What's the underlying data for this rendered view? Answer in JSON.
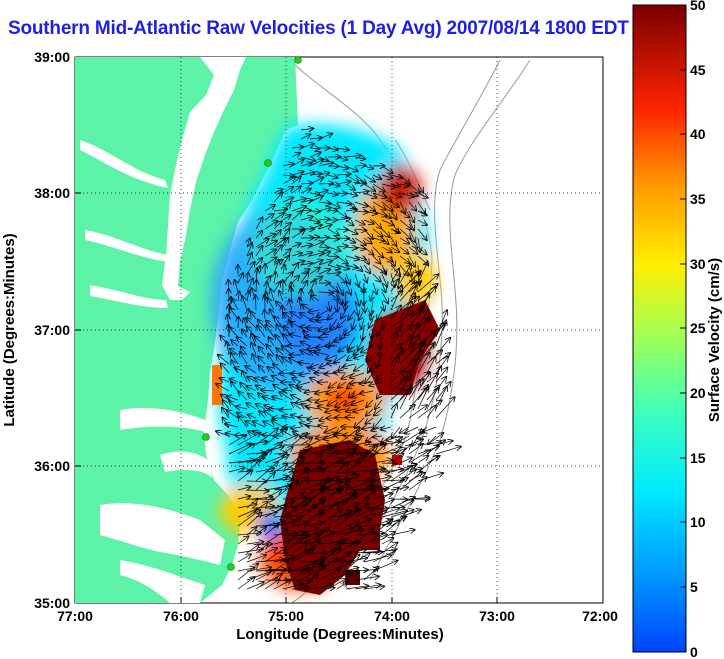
{
  "title": "Southern Mid-Atlantic Raw Velocities (1 Day Avg) 2007/08/14 1800 EDT",
  "map": {
    "xlabel": "Longitude (Degrees:Minutes)",
    "ylabel": "Latitude (Degrees:Minutes)",
    "x_ticks": [
      "77:00",
      "76:00",
      "75:00",
      "74:00",
      "73:00",
      "72:00"
    ],
    "y_ticks": [
      "39:00",
      "38:00",
      "37:00",
      "36:00",
      "35:00"
    ],
    "grid": "dotted",
    "land_color": "#5cf2a8",
    "station_color": "#22cc22"
  },
  "colorbar": {
    "label": "Surface Velocity (cm/s)",
    "ticks": [
      "50",
      "45",
      "40",
      "35",
      "30",
      "25",
      "20",
      "15",
      "10",
      "5",
      "0"
    ],
    "range": [
      0,
      50
    ],
    "colormap": "jet"
  }
}
